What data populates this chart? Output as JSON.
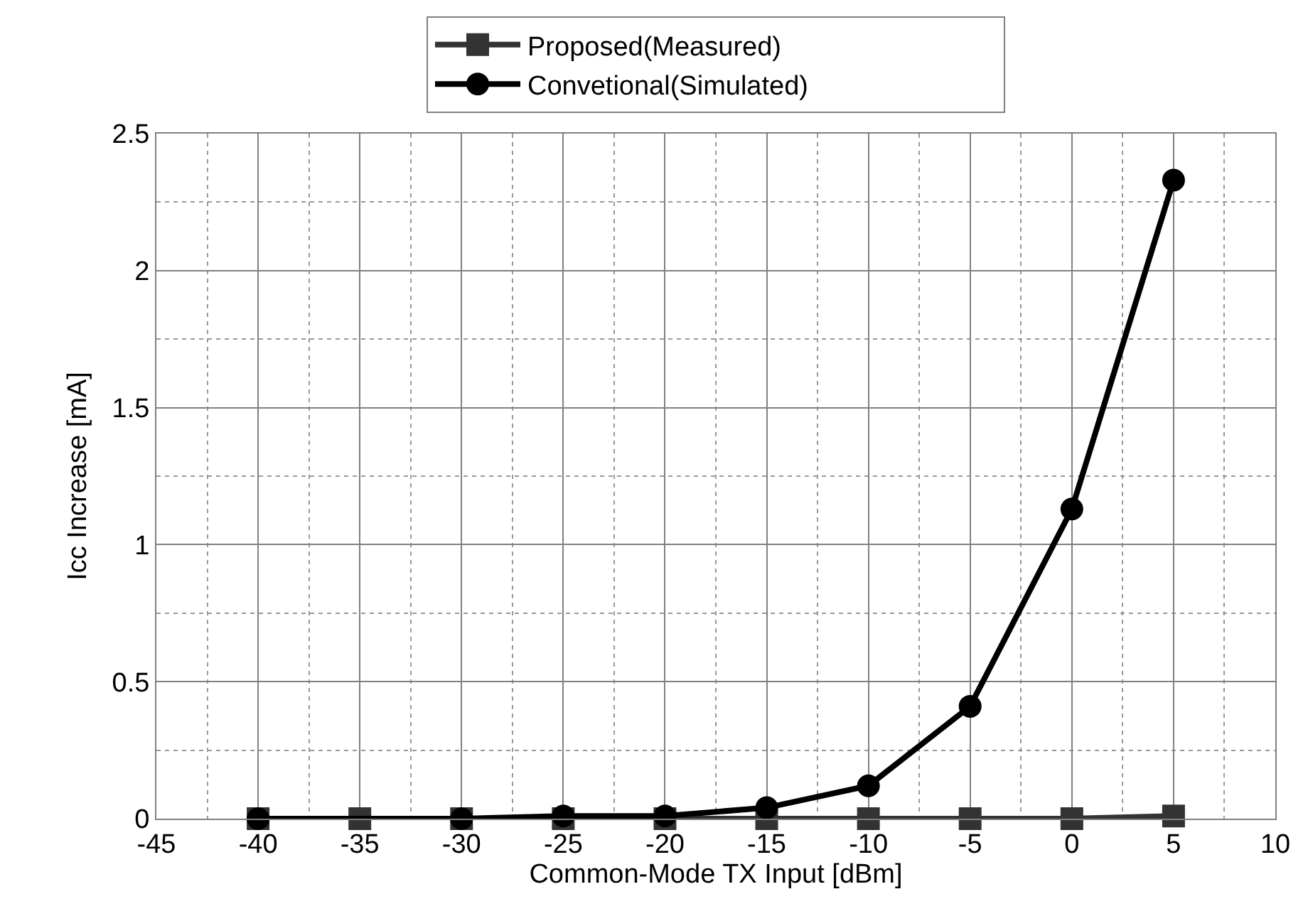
{
  "chart_data": {
    "type": "line",
    "xlabel": "Common-Mode TX Input [dBm]",
    "ylabel": "Icc Increase [mA]",
    "xlim": [
      -45,
      10
    ],
    "xticks": [
      -45,
      -40,
      -35,
      -30,
      -25,
      -20,
      -15,
      -10,
      -5,
      0,
      5,
      10
    ],
    "ylim": [
      0,
      2.5
    ],
    "yticks": [
      0,
      0.5,
      1,
      1.5,
      2,
      2.5
    ],
    "grid": true,
    "legend": "top",
    "line_style": "solid",
    "series": [
      {
        "name": "Proposed(Measured)",
        "color": "#333333",
        "marker": "square",
        "x": [
          -40,
          -35,
          -30,
          -25,
          -20,
          -15,
          -10,
          -5,
          0,
          5
        ],
        "values": [
          0,
          0,
          0,
          0,
          0,
          0,
          0,
          0,
          0,
          0.01
        ]
      },
      {
        "name": "Convetional(Simulated)",
        "color": "#000000",
        "marker": "circle",
        "x": [
          -40,
          -30,
          -25,
          -20,
          -15,
          -10,
          -5,
          0,
          5
        ],
        "values": [
          0,
          0,
          0.01,
          0.01,
          0.04,
          0.12,
          0.41,
          1.13,
          2.33
        ]
      }
    ]
  }
}
